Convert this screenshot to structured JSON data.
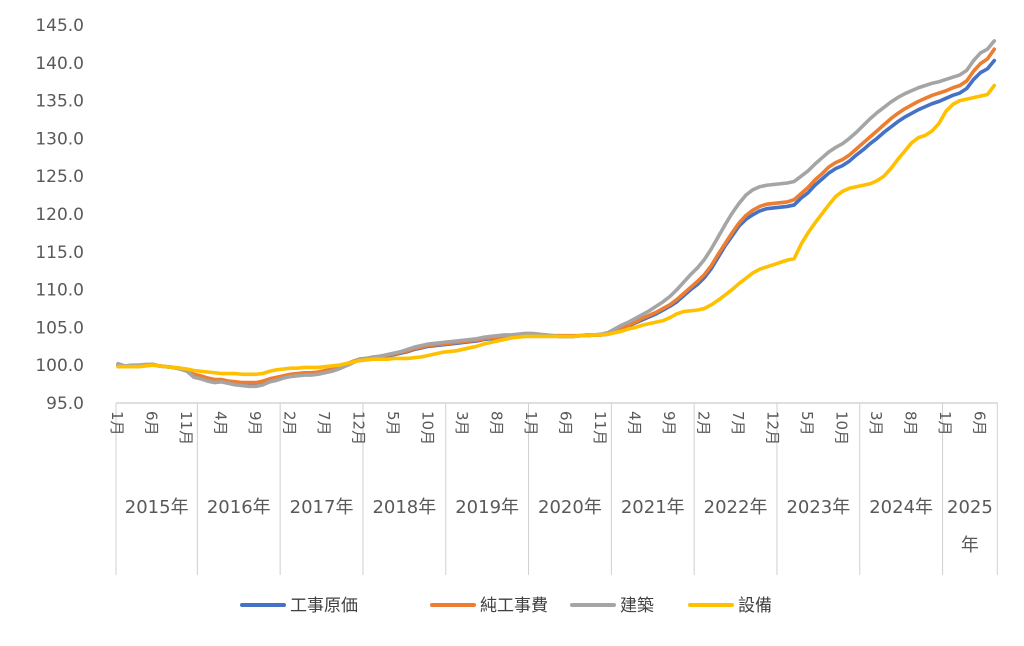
{
  "chart_data": {
    "type": "line",
    "title": "",
    "xlabel": "",
    "ylabel": "",
    "ylim": [
      95,
      145
    ],
    "yticks": [
      "95.0",
      "100.0",
      "105.0",
      "110.0",
      "115.0",
      "120.0",
      "125.0",
      "130.0",
      "135.0",
      "140.0",
      "145.0"
    ],
    "grid": false,
    "legend_position": "bottom",
    "month_tick_labels": [
      {
        "i": 0,
        "label": "1月"
      },
      {
        "i": 5,
        "label": "6月"
      },
      {
        "i": 10,
        "label": "11月"
      },
      {
        "i": 15,
        "label": "4月"
      },
      {
        "i": 20,
        "label": "9月"
      },
      {
        "i": 25,
        "label": "2月"
      },
      {
        "i": 30,
        "label": "7月"
      },
      {
        "i": 35,
        "label": "12月"
      },
      {
        "i": 40,
        "label": "5月"
      },
      {
        "i": 45,
        "label": "10月"
      },
      {
        "i": 50,
        "label": "3月"
      },
      {
        "i": 55,
        "label": "8月"
      },
      {
        "i": 60,
        "label": "1月"
      },
      {
        "i": 65,
        "label": "6月"
      },
      {
        "i": 70,
        "label": "11月"
      },
      {
        "i": 75,
        "label": "4月"
      },
      {
        "i": 80,
        "label": "9月"
      },
      {
        "i": 85,
        "label": "2月"
      },
      {
        "i": 90,
        "label": "7月"
      },
      {
        "i": 95,
        "label": "12月"
      },
      {
        "i": 100,
        "label": "5月"
      },
      {
        "i": 105,
        "label": "10月"
      },
      {
        "i": 110,
        "label": "3月"
      },
      {
        "i": 115,
        "label": "8月"
      },
      {
        "i": 120,
        "label": "1月"
      },
      {
        "i": 125,
        "label": "6月"
      }
    ],
    "year_groups": [
      {
        "label": "2015年",
        "start": 0,
        "count": 12
      },
      {
        "label": "2016年",
        "start": 12,
        "count": 12
      },
      {
        "label": "2017年",
        "start": 24,
        "count": 12
      },
      {
        "label": "2018年",
        "start": 36,
        "count": 12
      },
      {
        "label": "2019年",
        "start": 48,
        "count": 12
      },
      {
        "label": "2020年",
        "start": 60,
        "count": 12
      },
      {
        "label": "2021年",
        "start": 72,
        "count": 12
      },
      {
        "label": "2022年",
        "start": 84,
        "count": 12
      },
      {
        "label": "2023年",
        "start": 96,
        "count": 12
      },
      {
        "label": "2024年",
        "start": 108,
        "count": 12
      },
      {
        "label": "2025年",
        "start": 120,
        "count": 8
      }
    ],
    "series": [
      {
        "name": "工事原価",
        "color": "#4472C4",
        "values": [
          100.0,
          99.8,
          99.9,
          99.9,
          100.0,
          100.1,
          99.9,
          99.8,
          99.7,
          99.5,
          99.3,
          98.6,
          98.4,
          98.1,
          97.9,
          98.0,
          97.8,
          97.6,
          97.5,
          97.4,
          97.4,
          97.6,
          98.0,
          98.2,
          98.4,
          98.6,
          98.7,
          98.8,
          98.8,
          98.9,
          99.1,
          99.3,
          99.6,
          100.0,
          100.4,
          100.8,
          100.9,
          101.0,
          101.1,
          101.2,
          101.4,
          101.6,
          101.8,
          102.1,
          102.3,
          102.5,
          102.6,
          102.7,
          102.8,
          102.9,
          103.0,
          103.1,
          103.2,
          103.4,
          103.5,
          103.5,
          103.6,
          103.7,
          103.8,
          103.9,
          104.0,
          104.0,
          103.9,
          103.9,
          103.8,
          103.8,
          103.8,
          103.9,
          103.9,
          104.0,
          104.0,
          104.1,
          104.5,
          104.9,
          105.2,
          105.6,
          106.0,
          106.4,
          106.8,
          107.3,
          107.8,
          108.4,
          109.2,
          110.0,
          110.7,
          111.6,
          112.8,
          114.3,
          115.8,
          117.1,
          118.4,
          119.3,
          119.9,
          120.4,
          120.7,
          120.8,
          120.9,
          121.0,
          121.2,
          122.1,
          122.8,
          123.8,
          124.6,
          125.4,
          126.0,
          126.4,
          127.0,
          127.8,
          128.5,
          129.3,
          130.0,
          130.8,
          131.5,
          132.2,
          132.8,
          133.3,
          133.8,
          134.2,
          134.6,
          134.9,
          135.3,
          135.7,
          136.0,
          136.6,
          137.8,
          138.7,
          139.2,
          140.3
        ]
      },
      {
        "name": "純工事費",
        "color": "#ED7D31",
        "values": [
          100.0,
          99.9,
          99.9,
          100.0,
          100.0,
          100.1,
          99.9,
          99.8,
          99.7,
          99.6,
          99.4,
          98.8,
          98.6,
          98.3,
          98.1,
          98.1,
          97.9,
          97.8,
          97.7,
          97.7,
          97.7,
          97.9,
          98.2,
          98.4,
          98.6,
          98.8,
          98.9,
          99.0,
          99.0,
          99.1,
          99.3,
          99.5,
          99.8,
          100.1,
          100.5,
          100.8,
          100.9,
          101.0,
          101.2,
          101.3,
          101.5,
          101.7,
          101.9,
          102.2,
          102.4,
          102.6,
          102.7,
          102.8,
          102.9,
          103.0,
          103.1,
          103.2,
          103.3,
          103.5,
          103.6,
          103.6,
          103.7,
          103.8,
          103.9,
          104.0,
          104.0,
          104.0,
          104.0,
          103.9,
          103.9,
          103.9,
          103.9,
          103.9,
          104.0,
          104.0,
          104.0,
          104.2,
          104.6,
          105.0,
          105.3,
          105.7,
          106.2,
          106.6,
          107.0,
          107.5,
          108.0,
          108.7,
          109.5,
          110.3,
          111.1,
          112.0,
          113.2,
          114.7,
          116.1,
          117.5,
          118.8,
          119.8,
          120.5,
          121.0,
          121.3,
          121.4,
          121.5,
          121.6,
          121.9,
          122.7,
          123.5,
          124.5,
          125.3,
          126.2,
          126.8,
          127.2,
          127.8,
          128.6,
          129.4,
          130.2,
          131.0,
          131.8,
          132.6,
          133.3,
          133.9,
          134.4,
          134.9,
          135.3,
          135.7,
          136.0,
          136.3,
          136.7,
          137.0,
          137.6,
          138.9,
          139.9,
          140.5,
          141.8
        ]
      },
      {
        "name": "建築",
        "color": "#A5A5A5",
        "values": [
          100.2,
          99.9,
          100.0,
          100.0,
          100.1,
          100.1,
          99.9,
          99.8,
          99.7,
          99.5,
          99.2,
          98.4,
          98.2,
          97.9,
          97.7,
          97.8,
          97.6,
          97.4,
          97.3,
          97.2,
          97.2,
          97.4,
          97.8,
          98.0,
          98.3,
          98.5,
          98.6,
          98.7,
          98.7,
          98.8,
          99.0,
          99.2,
          99.5,
          99.9,
          100.3,
          100.8,
          100.9,
          101.1,
          101.2,
          101.4,
          101.6,
          101.8,
          102.1,
          102.4,
          102.6,
          102.8,
          102.9,
          103.0,
          103.1,
          103.2,
          103.3,
          103.4,
          103.5,
          103.7,
          103.8,
          103.9,
          104.0,
          104.0,
          104.1,
          104.2,
          104.2,
          104.1,
          104.0,
          103.9,
          103.8,
          103.8,
          103.8,
          103.9,
          103.9,
          104.0,
          104.1,
          104.3,
          104.8,
          105.3,
          105.7,
          106.2,
          106.7,
          107.2,
          107.8,
          108.4,
          109.1,
          110.0,
          111.0,
          112.0,
          112.9,
          114.0,
          115.4,
          117.0,
          118.6,
          120.1,
          121.4,
          122.5,
          123.2,
          123.6,
          123.8,
          123.9,
          124.0,
          124.1,
          124.3,
          125.0,
          125.7,
          126.6,
          127.4,
          128.2,
          128.8,
          129.3,
          130.0,
          130.8,
          131.7,
          132.6,
          133.4,
          134.1,
          134.8,
          135.4,
          135.9,
          136.3,
          136.7,
          137.0,
          137.3,
          137.5,
          137.8,
          138.1,
          138.4,
          139.0,
          140.3,
          141.3,
          141.8,
          142.9
        ]
      },
      {
        "name": "設備",
        "color": "#FFC000",
        "values": [
          99.8,
          99.8,
          99.8,
          99.8,
          99.9,
          100.0,
          99.9,
          99.8,
          99.7,
          99.6,
          99.5,
          99.3,
          99.2,
          99.1,
          99.0,
          98.9,
          98.9,
          98.9,
          98.8,
          98.8,
          98.8,
          98.9,
          99.2,
          99.4,
          99.5,
          99.6,
          99.6,
          99.7,
          99.7,
          99.7,
          99.8,
          99.9,
          100.0,
          100.2,
          100.4,
          100.6,
          100.7,
          100.8,
          100.8,
          100.8,
          100.9,
          100.9,
          100.9,
          101.0,
          101.1,
          101.3,
          101.5,
          101.7,
          101.8,
          101.9,
          102.1,
          102.3,
          102.5,
          102.8,
          103.0,
          103.2,
          103.4,
          103.6,
          103.7,
          103.8,
          103.8,
          103.8,
          103.8,
          103.8,
          103.8,
          103.8,
          103.8,
          103.9,
          103.9,
          104.0,
          104.0,
          104.1,
          104.3,
          104.5,
          104.8,
          105.0,
          105.3,
          105.5,
          105.7,
          105.9,
          106.3,
          106.8,
          107.1,
          107.2,
          107.3,
          107.5,
          108.0,
          108.6,
          109.3,
          110.0,
          110.8,
          111.5,
          112.2,
          112.7,
          113.0,
          113.3,
          113.6,
          113.9,
          114.1,
          116.0,
          117.5,
          118.8,
          120.0,
          121.2,
          122.3,
          123.0,
          123.4,
          123.6,
          123.8,
          124.0,
          124.4,
          125.0,
          126.0,
          127.2,
          128.3,
          129.4,
          130.1,
          130.4,
          131.0,
          132.0,
          133.6,
          134.5,
          135.0,
          135.2,
          135.4,
          135.6,
          135.8,
          137.0
        ]
      }
    ]
  }
}
